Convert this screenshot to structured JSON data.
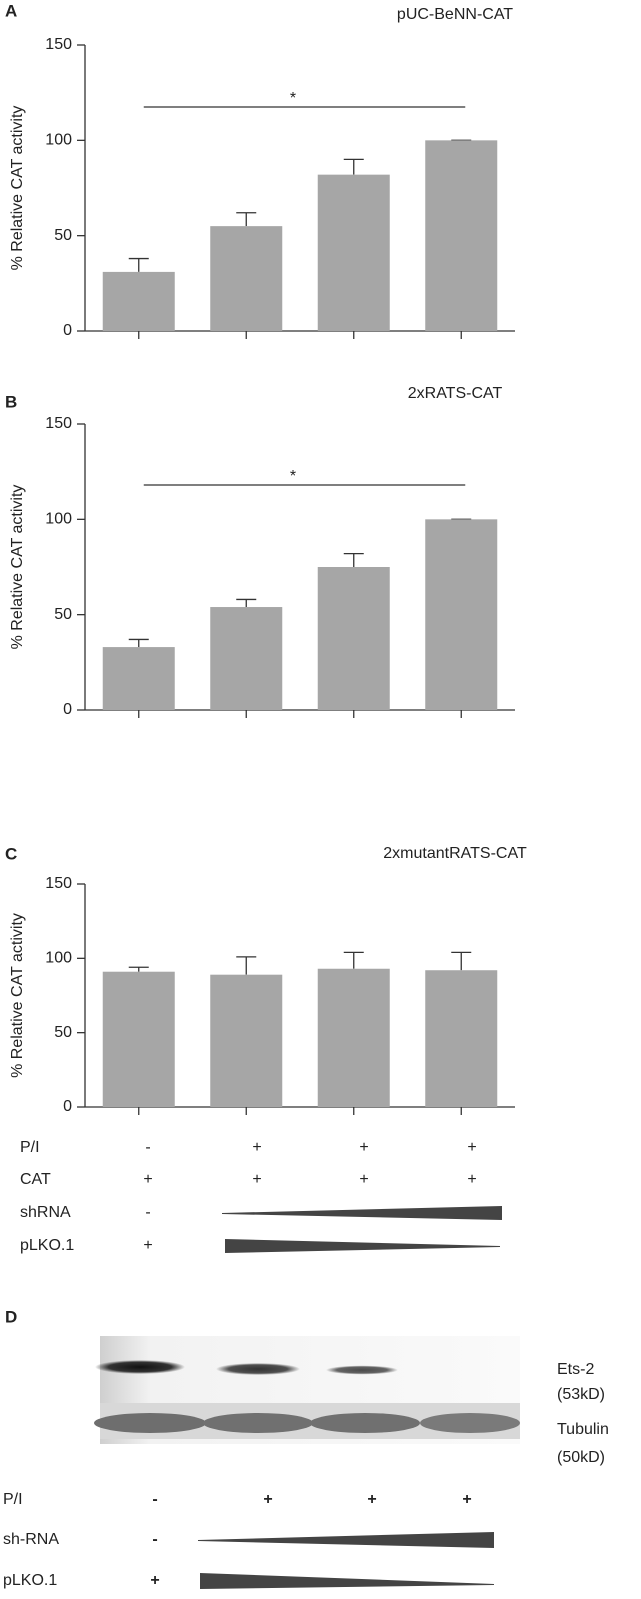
{
  "chart_data": [
    {
      "type": "bar",
      "panel": "A",
      "title": "pUC-BeNN-CAT",
      "ylabel": "% Relative CAT activity",
      "categories": [
        null,
        null,
        null,
        null
      ],
      "values": [
        31,
        55,
        82,
        100
      ],
      "errors": [
        7,
        7,
        8,
        0
      ],
      "color": "#a6a6a6",
      "ylim": [
        0,
        150
      ],
      "yticks": [
        0,
        50,
        100,
        150
      ],
      "annotation": "*"
    },
    {
      "type": "bar",
      "panel": "B",
      "title": "2xRATS-CAT",
      "ylabel": "% Relative CAT activity",
      "categories": [
        null,
        null,
        null,
        null
      ],
      "values": [
        33,
        54,
        75,
        100
      ],
      "errors": [
        4,
        4,
        7,
        0
      ],
      "color": "#a6a6a6",
      "ylim": [
        0,
        150
      ],
      "yticks": [
        0,
        50,
        100,
        150
      ],
      "annotation": "*"
    },
    {
      "type": "bar",
      "panel": "C",
      "title": "2xmutantRATS-CAT",
      "ylabel": "% Relative CAT activity",
      "categories": [
        null,
        null,
        null,
        null
      ],
      "values": [
        91,
        89,
        93,
        92
      ],
      "errors": [
        3,
        12,
        11,
        12
      ],
      "color": "#a6a6a6",
      "ylim": [
        0,
        150
      ],
      "yticks": [
        0,
        50,
        100,
        150
      ]
    }
  ],
  "conditions": {
    "rows": [
      {
        "label": "P/I",
        "marks": [
          "-",
          "+",
          "+",
          "+"
        ]
      },
      {
        "label": "CAT",
        "marks": [
          "+",
          "+",
          "+",
          "+"
        ]
      },
      {
        "label": "shRNA",
        "marks": [
          "-"
        ]
      },
      {
        "label": "pLKO.1",
        "marks": [
          "+"
        ]
      }
    ]
  },
  "blot": {
    "panel": "D",
    "bands": [
      {
        "label": "Ets-2",
        "size": "(53kD)"
      },
      {
        "label": "Tubulin",
        "size": "(50kD)"
      }
    ],
    "rows": [
      {
        "label": "P/I",
        "marks": [
          "-",
          "+",
          "+",
          "+"
        ]
      },
      {
        "label": "sh-RNA",
        "marks": [
          "-"
        ]
      },
      {
        "label": "pLKO.1",
        "marks": [
          "+"
        ]
      }
    ]
  }
}
